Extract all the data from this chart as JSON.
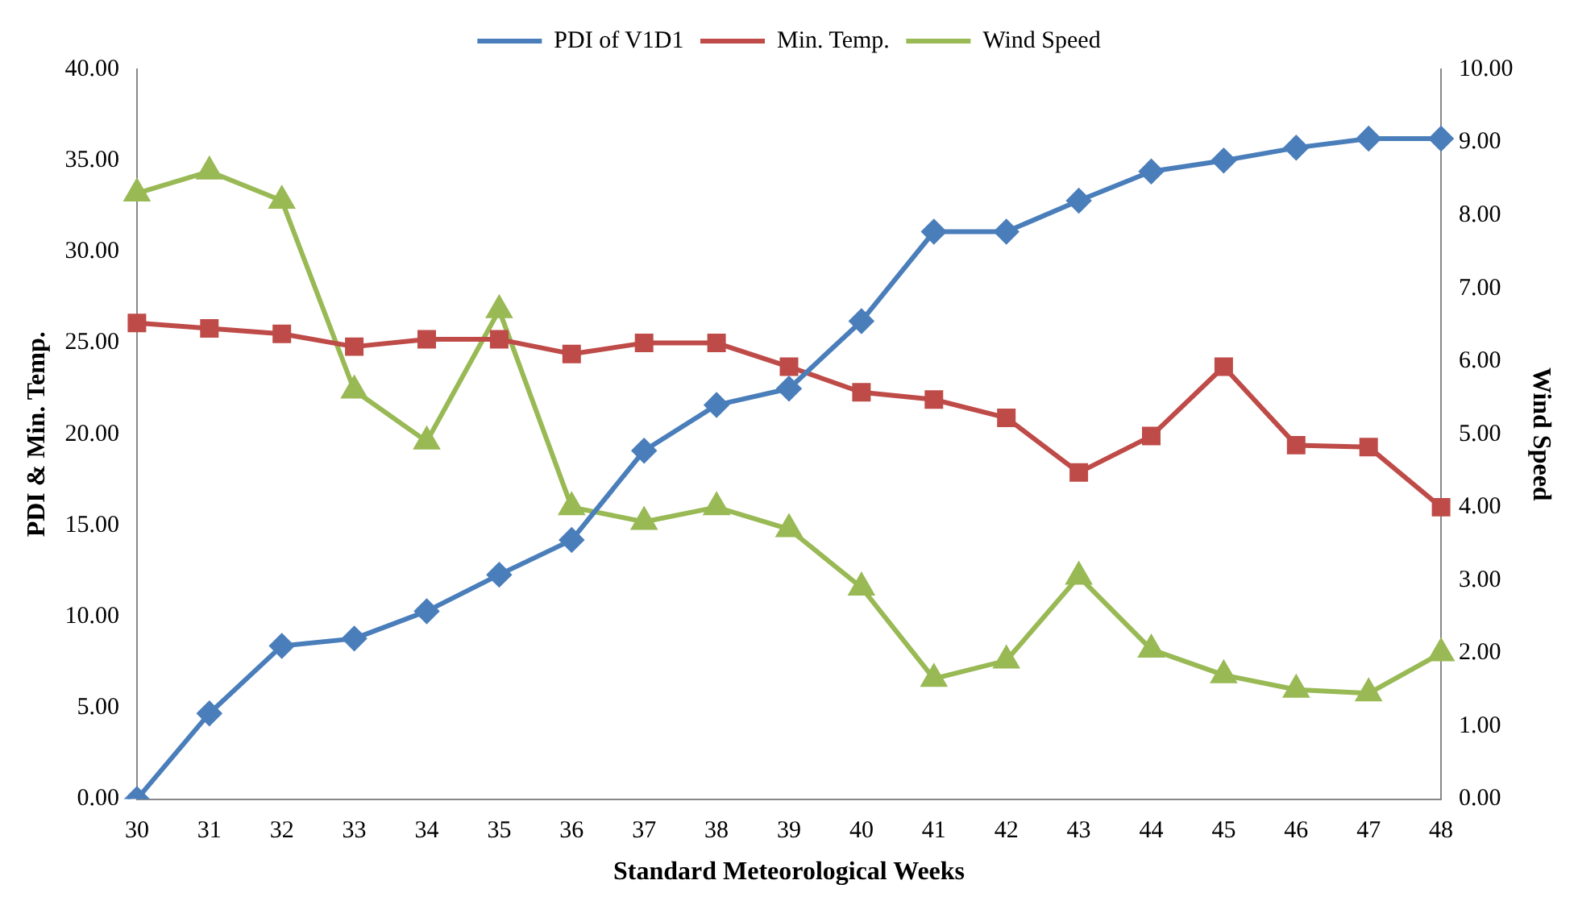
{
  "chart_data": {
    "type": "line",
    "xlabel": "Standard Meteorological Weeks",
    "ylabel": "PDI & Min. Temp.",
    "y2label": "Wind Speed",
    "categories": [
      "30",
      "31",
      "32",
      "33",
      "34",
      "35",
      "36",
      "37",
      "38",
      "39",
      "40",
      "41",
      "42",
      "43",
      "44",
      "45",
      "46",
      "47",
      "48"
    ],
    "series": [
      {
        "name": "PDI of V1D1",
        "color": "#4a7ebb",
        "marker": "diamond",
        "values": [
          0,
          4.7,
          8.4,
          8.8,
          10.3,
          12.3,
          14.2,
          19.1,
          21.6,
          22.5,
          26.2,
          31.1,
          31.1,
          32.8,
          34.4,
          35.0,
          35.7,
          36.2,
          36.2
        ]
      },
      {
        "name": "Min. Temp.",
        "color": "#be4b48",
        "marker": "square",
        "values": [
          26.1,
          25.8,
          25.5,
          24.8,
          25.2,
          25.2,
          24.4,
          25.0,
          25.0,
          23.7,
          22.3,
          21.9,
          20.9,
          17.9,
          19.9,
          23.7,
          19.4,
          19.3,
          16.0
        ]
      },
      {
        "name": "Wind Speed",
        "color": "#98b954",
        "marker": "triangle",
        "axis": "y2",
        "values": [
          8.3,
          8.6,
          8.2,
          5.6,
          4.9,
          6.7,
          4.0,
          3.8,
          4.0,
          3.7,
          2.9,
          1.65,
          1.9,
          3.05,
          2.05,
          1.7,
          1.5,
          1.45,
          2.0
        ]
      }
    ],
    "ylim": [
      0,
      40
    ],
    "yticks": [
      {
        "value": 0,
        "label": "0.00"
      },
      {
        "value": 5,
        "label": "5.00"
      },
      {
        "value": 10,
        "label": "10.00"
      },
      {
        "value": 15,
        "label": "15.00"
      },
      {
        "value": 20,
        "label": "20.00"
      },
      {
        "value": 25,
        "label": "25.00"
      },
      {
        "value": 30,
        "label": "30.00"
      },
      {
        "value": 35,
        "label": "35.00"
      },
      {
        "value": 40,
        "label": "40.00"
      }
    ],
    "y2lim": [
      0,
      10
    ],
    "y2ticks": [
      {
        "value": 0,
        "label": "0.00"
      },
      {
        "value": 1,
        "label": "1.00"
      },
      {
        "value": 2,
        "label": "2.00"
      },
      {
        "value": 3,
        "label": "3.00"
      },
      {
        "value": 4,
        "label": "4.00"
      },
      {
        "value": 5,
        "label": "5.00"
      },
      {
        "value": 6,
        "label": "6.00"
      },
      {
        "value": 7,
        "label": "7.00"
      },
      {
        "value": 8,
        "label": "8.00"
      },
      {
        "value": 9,
        "label": "9.00"
      },
      {
        "value": 10,
        "label": "10.00"
      }
    ],
    "legend": "top",
    "grid": false
  }
}
